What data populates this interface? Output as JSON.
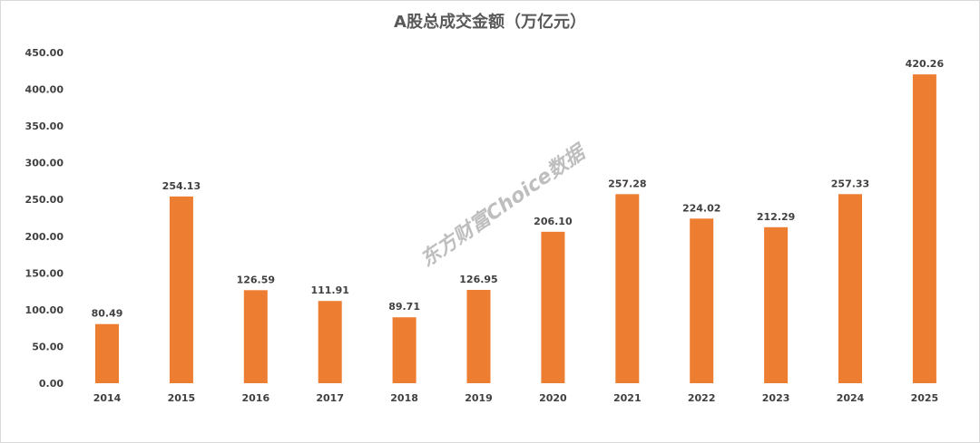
{
  "chart_data": {
    "type": "bar",
    "title": "A股总成交金额（万亿元）",
    "categories": [
      "2014",
      "2015",
      "2016",
      "2017",
      "2018",
      "2019",
      "2020",
      "2021",
      "2022",
      "2023",
      "2024",
      "2025"
    ],
    "values": [
      80.49,
      254.13,
      126.59,
      111.91,
      89.71,
      126.95,
      206.1,
      257.28,
      224.02,
      212.29,
      257.33,
      420.26
    ],
    "data_labels": [
      "80.49",
      "254.13",
      "126.59",
      "111.91",
      "89.71",
      "126.95",
      "206.10",
      "257.28",
      "224.02",
      "212.29",
      "257.33",
      "420.26"
    ],
    "yticks": [
      "0.00",
      "50.00",
      "100.00",
      "150.00",
      "200.00",
      "250.00",
      "300.00",
      "350.00",
      "400.00",
      "450.00"
    ],
    "ylim": [
      0,
      450
    ],
    "xlabel": "",
    "ylabel": "",
    "grid": false,
    "bar_color": "#ED7D31",
    "watermark": "东方财富Choice数据"
  }
}
